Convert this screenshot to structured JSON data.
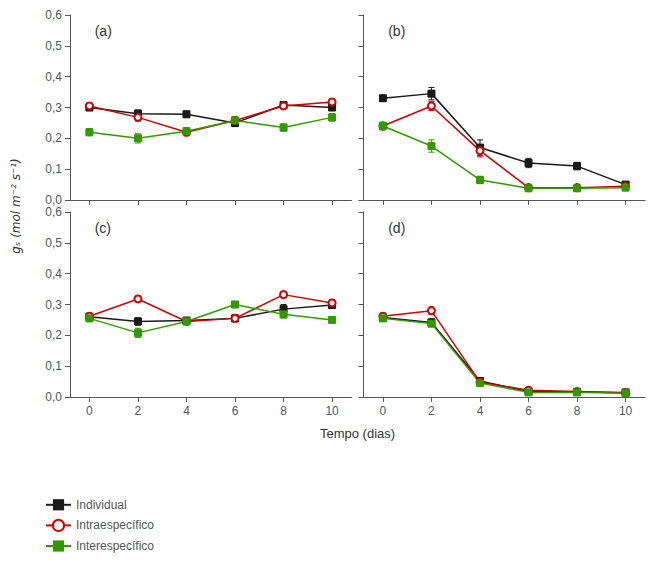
{
  "chart_data": [
    {
      "type": "line",
      "title": "(a)",
      "ylabel": "gₛ (mol m⁻² s⁻¹)",
      "x": [
        0,
        2,
        4,
        6,
        8,
        10
      ],
      "series": [
        {
          "name": "Individual",
          "color": "#1a1a1a",
          "marker": "square",
          "values": [
            0.3,
            0.28,
            0.278,
            0.25,
            0.308,
            0.3
          ],
          "yerr": [
            0.01,
            0.012,
            0.01,
            0.012,
            0.01,
            0.01
          ]
        },
        {
          "name": "Intraespecífico",
          "color": "#cc0000",
          "marker": "hollow_circle",
          "values": [
            0.305,
            0.268,
            0.22,
            0.258,
            0.305,
            0.318
          ],
          "yerr": [
            0.01,
            0.012,
            0.012,
            0.01,
            0.01,
            0.01
          ]
        },
        {
          "name": "Interespecífico",
          "color": "#339900",
          "marker": "square",
          "values": [
            0.22,
            0.2,
            0.223,
            0.258,
            0.235,
            0.268
          ],
          "yerr": [
            0.012,
            0.015,
            0.012,
            0.012,
            0.012,
            0.012
          ]
        }
      ],
      "xlim": [
        -0.8,
        10.8
      ],
      "ylim": [
        0.0,
        0.6
      ],
      "xticks": [
        0,
        2,
        4,
        6,
        8,
        10
      ],
      "yticks": [
        {
          "value": 0.0,
          "label": "0,0"
        },
        {
          "value": 0.1,
          "label": "0,1"
        },
        {
          "value": 0.2,
          "label": "0,2"
        },
        {
          "value": 0.3,
          "label": "0,3"
        },
        {
          "value": 0.4,
          "label": "0,4"
        },
        {
          "value": 0.5,
          "label": "0,5"
        },
        {
          "value": 0.6,
          "label": "0,6"
        }
      ],
      "grid": false,
      "tick_labels": "y"
    },
    {
      "type": "line",
      "title": "(b)",
      "x": [
        0,
        2,
        4,
        6,
        8,
        10
      ],
      "series": [
        {
          "name": "Individual",
          "color": "#1a1a1a",
          "marker": "square",
          "values": [
            0.33,
            0.345,
            0.17,
            0.12,
            0.11,
            0.05
          ],
          "yerr": [
            0.01,
            0.02,
            0.025,
            0.015,
            0.012,
            0.008
          ]
        },
        {
          "name": "Intraespecífico",
          "color": "#cc0000",
          "marker": "hollow_circle",
          "values": [
            0.24,
            0.305,
            0.16,
            0.04,
            0.04,
            0.045
          ],
          "yerr": [
            0.012,
            0.015,
            0.02,
            0.008,
            0.008,
            0.008
          ]
        },
        {
          "name": "Interespecífico",
          "color": "#339900",
          "marker": "square",
          "values": [
            0.24,
            0.175,
            0.065,
            0.038,
            0.038,
            0.04
          ],
          "yerr": [
            0.012,
            0.02,
            0.012,
            0.006,
            0.006,
            0.006
          ]
        }
      ],
      "xlim": [
        -0.8,
        10.8
      ],
      "ylim": [
        0.0,
        0.6
      ],
      "xticks": [
        0,
        2,
        4,
        6,
        8,
        10
      ],
      "yticks": [
        0.0,
        0.1,
        0.2,
        0.3,
        0.4,
        0.5,
        0.6
      ],
      "grid": false,
      "tick_labels": false
    },
    {
      "type": "line",
      "title": "(c)",
      "x": [
        0,
        2,
        4,
        6,
        8,
        10
      ],
      "series": [
        {
          "name": "Individual",
          "color": "#1a1a1a",
          "marker": "square",
          "values": [
            0.26,
            0.245,
            0.248,
            0.255,
            0.285,
            0.298
          ],
          "yerr": [
            0.01,
            0.012,
            0.01,
            0.01,
            0.015,
            0.01
          ]
        },
        {
          "name": "Intraespecífico",
          "color": "#cc0000",
          "marker": "hollow_circle",
          "values": [
            0.262,
            0.318,
            0.245,
            0.255,
            0.332,
            0.305
          ],
          "yerr": [
            0.01,
            0.01,
            0.01,
            0.01,
            0.01,
            0.01
          ]
        },
        {
          "name": "Interespecífico",
          "color": "#339900",
          "marker": "square",
          "values": [
            0.255,
            0.208,
            0.245,
            0.3,
            0.268,
            0.25
          ],
          "yerr": [
            0.01,
            0.015,
            0.01,
            0.01,
            0.012,
            0.01
          ]
        }
      ],
      "xlim": [
        -0.8,
        10.8
      ],
      "ylim": [
        0.0,
        0.6
      ],
      "xticks": [
        0,
        2,
        4,
        6,
        8,
        10
      ],
      "yticks": [
        {
          "value": 0.0,
          "label": "0,0"
        },
        {
          "value": 0.1,
          "label": "0,1"
        },
        {
          "value": 0.2,
          "label": "0,2"
        },
        {
          "value": 0.3,
          "label": "0,3"
        },
        {
          "value": 0.4,
          "label": "0,4"
        },
        {
          "value": 0.5,
          "label": "0,5"
        },
        {
          "value": 0.6,
          "label": "0,6"
        }
      ],
      "grid": false,
      "tick_labels": true,
      "legend": "lower left"
    },
    {
      "type": "line",
      "title": "(d)",
      "xlabel": "Tempo (dias)",
      "x": [
        0,
        2,
        4,
        6,
        8,
        10
      ],
      "series": [
        {
          "name": "Individual",
          "color": "#1a1a1a",
          "marker": "square",
          "values": [
            0.258,
            0.242,
            0.052,
            0.018,
            0.016,
            0.015
          ],
          "yerr": [
            0.01,
            0.012,
            0.008,
            0.004,
            0.004,
            0.004
          ]
        },
        {
          "name": "Intraespecífico",
          "color": "#cc0000",
          "marker": "hollow_circle",
          "values": [
            0.262,
            0.28,
            0.048,
            0.022,
            0.018,
            0.013
          ],
          "yerr": [
            0.01,
            0.012,
            0.008,
            0.004,
            0.004,
            0.004
          ]
        },
        {
          "name": "Interespecífico",
          "color": "#339900",
          "marker": "square",
          "values": [
            0.255,
            0.238,
            0.045,
            0.015,
            0.015,
            0.012
          ],
          "yerr": [
            0.01,
            0.01,
            0.007,
            0.003,
            0.003,
            0.003
          ]
        }
      ],
      "xlim": [
        -0.8,
        10.8
      ],
      "ylim": [
        0.0,
        0.6
      ],
      "xticks": [
        0,
        2,
        4,
        6,
        8,
        10
      ],
      "yticks": [
        0.0,
        0.1,
        0.2,
        0.3,
        0.4,
        0.5,
        0.6
      ],
      "grid": false,
      "tick_labels": "x"
    }
  ]
}
